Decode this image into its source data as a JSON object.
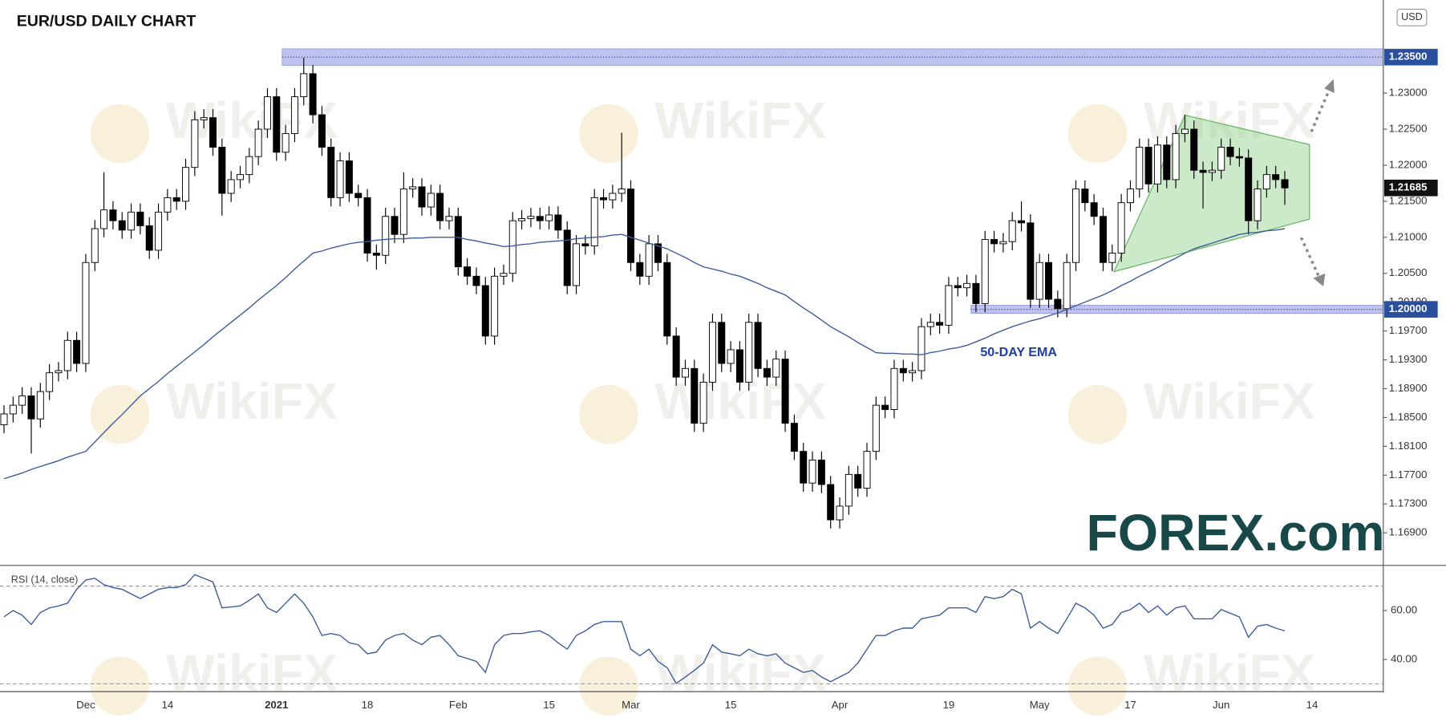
{
  "chart_data": {
    "type": "candlestick",
    "title": "EUR/USD DAILY CHART",
    "currency": "USD",
    "watermark": "WikiFX",
    "logo": "FOREX.com",
    "categories": [
      null,
      null,
      null,
      null,
      null,
      null,
      null,
      null,
      null,
      "Dec",
      null,
      null,
      null,
      null,
      null,
      null,
      null,
      null,
      "14",
      null,
      null,
      null,
      null,
      null,
      null,
      null,
      null,
      null,
      null,
      null,
      "2021",
      null,
      null,
      null,
      null,
      null,
      null,
      null,
      null,
      null,
      "18",
      null,
      null,
      null,
      null,
      null,
      null,
      null,
      null,
      null,
      "Feb",
      null,
      null,
      null,
      null,
      null,
      null,
      null,
      null,
      null,
      "15",
      null,
      null,
      null,
      null,
      null,
      null,
      null,
      null,
      "Mar",
      null,
      null,
      null,
      null,
      null,
      null,
      null,
      null,
      null,
      null,
      "15",
      null,
      null,
      null,
      null,
      null,
      null,
      null,
      null,
      null,
      null,
      null,
      "Apr",
      null,
      null,
      null,
      null,
      null,
      null,
      null,
      null,
      null,
      null,
      null,
      "19",
      null,
      null,
      null,
      null,
      null,
      null,
      null,
      null,
      null,
      "May",
      null,
      null,
      null,
      null,
      null,
      null,
      null,
      null,
      null,
      "17",
      null,
      null,
      null,
      null,
      null,
      null,
      null,
      null,
      null,
      "Jun",
      null,
      null,
      null,
      null,
      null,
      null,
      null,
      null,
      null,
      "14"
    ],
    "open": [
      1.184,
      1.1855,
      1.1867,
      1.188,
      1.1848,
      1.1886,
      1.1912,
      1.1915,
      1.1957,
      1.1925,
      1.2065,
      1.2112,
      1.2138,
      1.2123,
      1.211,
      1.2135,
      1.2116,
      1.2082,
      1.2135,
      1.2155,
      1.215,
      1.2197,
      1.2263,
      1.2266,
      1.2225,
      1.2161,
      1.218,
      1.2187,
      1.2212,
      1.225,
      1.2295,
      1.2218,
      1.2244,
      1.2295,
      1.2327,
      1.227,
      1.2225,
      1.2155,
      1.2206,
      1.2161,
      1.2155,
      1.2078,
      1.2075,
      1.2129,
      1.2104,
      1.2167,
      1.217,
      1.2142,
      1.2161,
      1.2123,
      1.2129,
      1.2059,
      1.2046,
      1.2033,
      1.1963,
      1.2046,
      1.205,
      1.2123,
      1.2126,
      1.2129,
      1.2123,
      1.2131,
      1.211,
      1.2033,
      1.2091,
      1.2088,
      1.2155,
      1.2152,
      1.2161,
      1.2167,
      1.2065,
      1.2046,
      1.2091,
      1.2065,
      1.1963,
      1.1906,
      1.1918,
      1.1842,
      1.1899,
      1.1982,
      1.1925,
      1.1944,
      1.1899,
      1.1982,
      1.1918,
      1.1906,
      1.1931,
      1.1842,
      1.1803,
      1.1759,
      1.1791,
      1.1757,
      1.1708,
      1.1727,
      1.1771,
      1.1752,
      1.1803,
      1.1867,
      1.1861,
      1.1918,
      1.1912,
      1.1915,
      1.1976,
      1.1982,
      1.1978,
      1.2033,
      1.203,
      1.2036,
      1.2008,
      1.2097,
      1.2091,
      1.2094,
      1.2123,
      1.212,
      1.2014,
      1.2065,
      1.2014,
      1.2001,
      1.2065,
      1.2167,
      1.2148,
      1.2129,
      1.2065,
      1.2078,
      1.2148,
      1.2167,
      1.2225,
      1.2174,
      1.2228,
      1.218,
      1.2244,
      1.225,
      1.2193,
      1.219,
      1.2193,
      1.2225,
      1.2212,
      1.221,
      1.2123,
      1.2167,
      1.2187,
      1.218,
      null,
      null,
      null
    ],
    "high": [
      1.1867,
      1.1879,
      1.1892,
      1.1892,
      1.1898,
      1.1924,
      1.1927,
      1.1969,
      1.1969,
      1.2077,
      1.2124,
      1.219,
      1.215,
      1.2135,
      1.2147,
      1.2147,
      1.2128,
      1.2147,
      1.2167,
      1.2167,
      1.2209,
      1.2275,
      1.2278,
      1.2278,
      1.2237,
      1.2192,
      1.2199,
      1.2224,
      1.2262,
      1.2307,
      1.2307,
      1.2256,
      1.2307,
      1.2349,
      1.2339,
      1.2282,
      1.2237,
      1.2218,
      1.2218,
      1.2173,
      1.2167,
      1.209,
      1.2141,
      1.2141,
      1.219,
      1.2182,
      1.2182,
      1.2173,
      1.2173,
      1.2141,
      1.2141,
      1.2071,
      1.2058,
      1.2045,
      1.2058,
      1.2062,
      1.2135,
      1.2138,
      1.2141,
      1.2141,
      1.2143,
      1.2143,
      1.2122,
      1.2103,
      1.2103,
      1.2167,
      1.2167,
      1.2173,
      1.2245,
      1.2179,
      1.2077,
      1.2103,
      1.2103,
      1.2077,
      1.1975,
      1.193,
      1.193,
      1.1911,
      1.1994,
      1.1994,
      1.1956,
      1.1956,
      1.1994,
      1.1994,
      1.193,
      1.1943,
      1.1943,
      1.1854,
      1.1815,
      1.1803,
      1.1803,
      1.1769,
      1.1739,
      1.1783,
      1.1783,
      1.1815,
      1.1879,
      1.1879,
      1.193,
      1.193,
      1.1927,
      1.1988,
      1.1994,
      1.1994,
      1.2045,
      1.2045,
      1.2048,
      1.2048,
      1.2109,
      1.2109,
      1.2106,
      1.2135,
      1.215,
      1.2132,
      1.2077,
      1.2077,
      1.2026,
      1.2077,
      1.2179,
      1.2179,
      1.216,
      1.2141,
      1.209,
      1.216,
      1.2179,
      1.2237,
      1.2237,
      1.224,
      1.224,
      1.2256,
      1.227,
      1.2262,
      1.2205,
      1.2205,
      1.2237,
      1.2237,
      1.2224,
      1.2222,
      1.2179,
      1.2199,
      1.2199,
      1.2192,
      null,
      null,
      null
    ],
    "low": [
      1.1828,
      1.1843,
      1.1855,
      1.18,
      1.1836,
      1.1874,
      1.19,
      1.1903,
      1.1913,
      1.1913,
      1.2053,
      1.21,
      1.2111,
      1.2098,
      1.2098,
      1.2104,
      1.207,
      1.207,
      1.2123,
      1.2138,
      1.2138,
      1.2185,
      1.2251,
      1.2213,
      1.213,
      1.2149,
      1.2168,
      1.2175,
      1.22,
      1.2238,
      1.2206,
      1.2206,
      1.2232,
      1.2283,
      1.2258,
      1.2213,
      1.2143,
      1.2143,
      1.2149,
      1.2143,
      1.2066,
      1.2055,
      1.2063,
      1.2092,
      1.2092,
      1.2155,
      1.213,
      1.213,
      1.2111,
      1.2111,
      1.2047,
      1.2034,
      1.2021,
      1.1951,
      1.1951,
      1.2034,
      1.2038,
      1.2111,
      1.2114,
      1.2111,
      1.2111,
      1.2098,
      1.2021,
      1.2021,
      1.2076,
      1.2076,
      1.214,
      1.214,
      1.2149,
      1.2053,
      1.2034,
      1.2034,
      1.2053,
      1.1951,
      1.1894,
      1.1894,
      1.183,
      1.183,
      1.1887,
      1.1913,
      1.1913,
      1.1887,
      1.1887,
      1.1906,
      1.1894,
      1.1894,
      1.183,
      1.1791,
      1.1747,
      1.1747,
      1.1745,
      1.1696,
      1.1696,
      1.1715,
      1.174,
      1.174,
      1.1791,
      1.1849,
      1.1849,
      1.19,
      1.19,
      1.1903,
      1.1964,
      1.1966,
      1.1966,
      1.2018,
      1.2018,
      1.1996,
      1.1996,
      1.2079,
      1.2079,
      1.2082,
      1.2108,
      1.2002,
      1.2002,
      1.2002,
      1.1989,
      1.1989,
      1.2053,
      1.2136,
      1.2117,
      1.2053,
      1.2053,
      1.2066,
      1.2136,
      1.2155,
      1.2162,
      1.2162,
      1.2168,
      1.2168,
      1.2232,
      1.2181,
      1.214,
      1.2178,
      1.2181,
      1.22,
      1.2198,
      1.2104,
      1.2111,
      1.2155,
      1.2168,
      1.2145,
      null,
      null,
      null
    ],
    "close": [
      1.1855,
      1.1867,
      1.188,
      1.1848,
      1.1886,
      1.1912,
      1.1915,
      1.1957,
      1.1925,
      1.2065,
      1.2112,
      1.2138,
      1.2123,
      1.211,
      1.2135,
      1.2116,
      1.2082,
      1.2135,
      1.2155,
      1.215,
      1.2197,
      1.2263,
      1.2266,
      1.2225,
      1.2161,
      1.218,
      1.2187,
      1.2212,
      1.225,
      1.2295,
      1.2218,
      1.2244,
      1.2295,
      1.2327,
      1.227,
      1.2225,
      1.2155,
      1.2206,
      1.2161,
      1.2155,
      1.2078,
      1.2075,
      1.2129,
      1.2104,
      1.2167,
      1.217,
      1.2142,
      1.2161,
      1.2123,
      1.2129,
      1.2059,
      1.2046,
      1.2033,
      1.1963,
      1.2046,
      1.205,
      1.2123,
      1.2126,
      1.2129,
      1.2123,
      1.2131,
      1.211,
      1.2033,
      1.2091,
      1.2088,
      1.2155,
      1.2152,
      1.2161,
      1.2167,
      1.2065,
      1.2046,
      1.2091,
      1.2065,
      1.1963,
      1.1906,
      1.1918,
      1.1842,
      1.1899,
      1.1982,
      1.1925,
      1.1944,
      1.1899,
      1.1982,
      1.1918,
      1.1906,
      1.1931,
      1.1842,
      1.1803,
      1.1759,
      1.1791,
      1.1757,
      1.1708,
      1.1727,
      1.1771,
      1.1752,
      1.1803,
      1.1867,
      1.1861,
      1.1918,
      1.1912,
      1.1915,
      1.1976,
      1.1982,
      1.1978,
      1.2033,
      1.203,
      1.2036,
      1.2008,
      1.2097,
      1.2091,
      1.2094,
      1.2123,
      1.212,
      1.2014,
      1.2065,
      1.2014,
      1.2001,
      1.2065,
      1.2167,
      1.2148,
      1.2129,
      1.2065,
      1.2078,
      1.2148,
      1.2167,
      1.2225,
      1.2174,
      1.2228,
      1.218,
      1.2244,
      1.225,
      1.2193,
      1.219,
      1.2193,
      1.2225,
      1.2212,
      1.221,
      1.2123,
      1.2167,
      1.2187,
      1.218,
      1.21685,
      null,
      null,
      null
    ],
    "up_color": "#ffffff",
    "down_color": "#000000",
    "ema": {
      "name": "50-DAY EMA",
      "color": "#3b5c9c",
      "values": [
        1.1765,
        1.1769,
        1.1773,
        1.1778,
        1.1782,
        1.1786,
        1.179,
        1.1795,
        1.1799,
        1.1803,
        1.1816,
        1.1829,
        1.1842,
        1.1854,
        1.1867,
        1.188,
        1.189,
        1.19,
        1.1911,
        1.1921,
        1.1931,
        1.1941,
        1.1951,
        1.1962,
        1.1972,
        1.1982,
        1.1992,
        1.2002,
        1.2013,
        1.2023,
        1.2033,
        1.2044,
        1.2056,
        1.2067,
        1.2078,
        1.2081,
        1.2085,
        1.2088,
        1.2091,
        1.2093,
        1.2094,
        1.2096,
        1.2097,
        1.2098,
        1.2098,
        1.2099,
        1.2099,
        1.21,
        1.21,
        1.21,
        1.21,
        1.2097,
        1.2095,
        1.2092,
        1.209,
        1.2087,
        1.2088,
        1.209,
        1.2091,
        1.2093,
        1.2094,
        1.2095,
        1.2096,
        1.2098,
        1.2099,
        1.21,
        1.2101,
        1.2103,
        1.2104,
        1.21,
        1.2096,
        1.2092,
        1.2088,
        1.2084,
        1.2078,
        1.2072,
        1.2065,
        1.2059,
        1.2056,
        1.2053,
        1.2049,
        1.2046,
        1.2041,
        1.2036,
        1.203,
        1.2025,
        1.202,
        1.2011,
        1.2002,
        1.1994,
        1.1985,
        1.1976,
        1.1969,
        1.1962,
        1.1954,
        1.1947,
        1.194,
        1.1939,
        1.1939,
        1.1938,
        1.1938,
        1.1937,
        1.194,
        1.1942,
        1.1945,
        1.1947,
        1.195,
        1.1955,
        1.196,
        1.1966,
        1.1971,
        1.1976,
        1.198,
        1.1984,
        1.1987,
        1.1991,
        1.1995,
        1.2,
        1.2005,
        1.201,
        1.2015,
        1.202,
        1.2026,
        1.2033,
        1.2039,
        1.2046,
        1.2052,
        1.2058,
        1.2065,
        1.2071,
        1.2078,
        1.2084,
        1.2088,
        1.2092,
        1.2096,
        1.21,
        1.2104,
        1.2106,
        1.2107,
        1.2109,
        1.211,
        1.2112,
        null,
        null,
        null
      ]
    },
    "ylim": [
      1.1646,
      1.2419
    ],
    "yticks": [
      {
        "value": 1.23,
        "label": "1.23000"
      },
      {
        "value": 1.225,
        "label": "1.22500"
      },
      {
        "value": 1.22,
        "label": "1.22000"
      },
      {
        "value": 1.215,
        "label": "1.21500"
      },
      {
        "value": 1.21,
        "label": "1.21000"
      },
      {
        "value": 1.205,
        "label": "1.20500"
      },
      {
        "value": 1.201,
        "label": "1.20100"
      },
      {
        "value": 1.197,
        "label": "1.19700"
      },
      {
        "value": 1.193,
        "label": "1.19300"
      },
      {
        "value": 1.189,
        "label": "1.18900"
      },
      {
        "value": 1.185,
        "label": "1.18500"
      },
      {
        "value": 1.181,
        "label": "1.18100"
      },
      {
        "value": 1.177,
        "label": "1.17700"
      },
      {
        "value": 1.173,
        "label": "1.17300"
      },
      {
        "value": 1.169,
        "label": "1.16900"
      }
    ],
    "levels": [
      {
        "value": 1.235,
        "label": "1.23500"
      },
      {
        "value": 1.2,
        "label": "1.20000"
      }
    ],
    "last_price": {
      "value": 1.21685,
      "label": "1.21685"
    },
    "rsi": {
      "name": "RSI (14, close)",
      "color": "#3b5c9c",
      "ylim": [
        27.2,
        76.2
      ],
      "yticks": [
        {
          "value": 60,
          "label": "60.00"
        },
        {
          "value": 40,
          "label": "40.00"
        }
      ],
      "bands": [
        70,
        30
      ],
      "values": [
        57.4,
        60.0,
        58.1,
        54.3,
        59.2,
        61.1,
        61.9,
        63.0,
        68.7,
        72.5,
        73.2,
        70.6,
        69.4,
        68.7,
        66.8,
        64.9,
        66.8,
        68.7,
        69.4,
        69.4,
        70.6,
        74.7,
        73.2,
        71.7,
        61.1,
        61.5,
        61.9,
        64.2,
        66.8,
        61.1,
        59.2,
        63.0,
        66.8,
        63.0,
        57.4,
        49.8,
        50.6,
        49.8,
        46.8,
        46.0,
        42.3,
        43.0,
        47.9,
        49.8,
        50.6,
        47.9,
        46.0,
        49.1,
        49.8,
        46.0,
        41.5,
        40.4,
        39.2,
        34.7,
        46.0,
        49.8,
        50.6,
        50.6,
        51.3,
        51.7,
        49.8,
        46.8,
        44.2,
        49.8,
        51.7,
        54.3,
        55.5,
        55.5,
        55.5,
        44.2,
        41.5,
        44.2,
        39.2,
        36.6,
        30.2,
        32.8,
        35.5,
        38.5,
        46.0,
        43.0,
        42.3,
        41.5,
        44.2,
        42.3,
        41.5,
        42.3,
        38.5,
        36.6,
        34.7,
        35.5,
        32.8,
        30.9,
        32.8,
        34.7,
        38.5,
        44.2,
        49.8,
        49.8,
        51.7,
        52.8,
        52.8,
        56.6,
        57.4,
        58.1,
        61.1,
        61.1,
        61.1,
        59.2,
        65.7,
        64.9,
        65.7,
        68.7,
        66.8,
        52.8,
        55.5,
        52.8,
        50.6,
        56.6,
        63.0,
        61.1,
        58.1,
        52.8,
        54.3,
        59.2,
        60.4,
        63.0,
        59.2,
        61.9,
        58.1,
        61.1,
        61.9,
        56.6,
        56.6,
        56.6,
        60.4,
        58.9,
        57.4,
        49.1,
        53.6,
        54.3,
        52.8,
        51.7,
        null,
        null,
        null
      ]
    }
  }
}
